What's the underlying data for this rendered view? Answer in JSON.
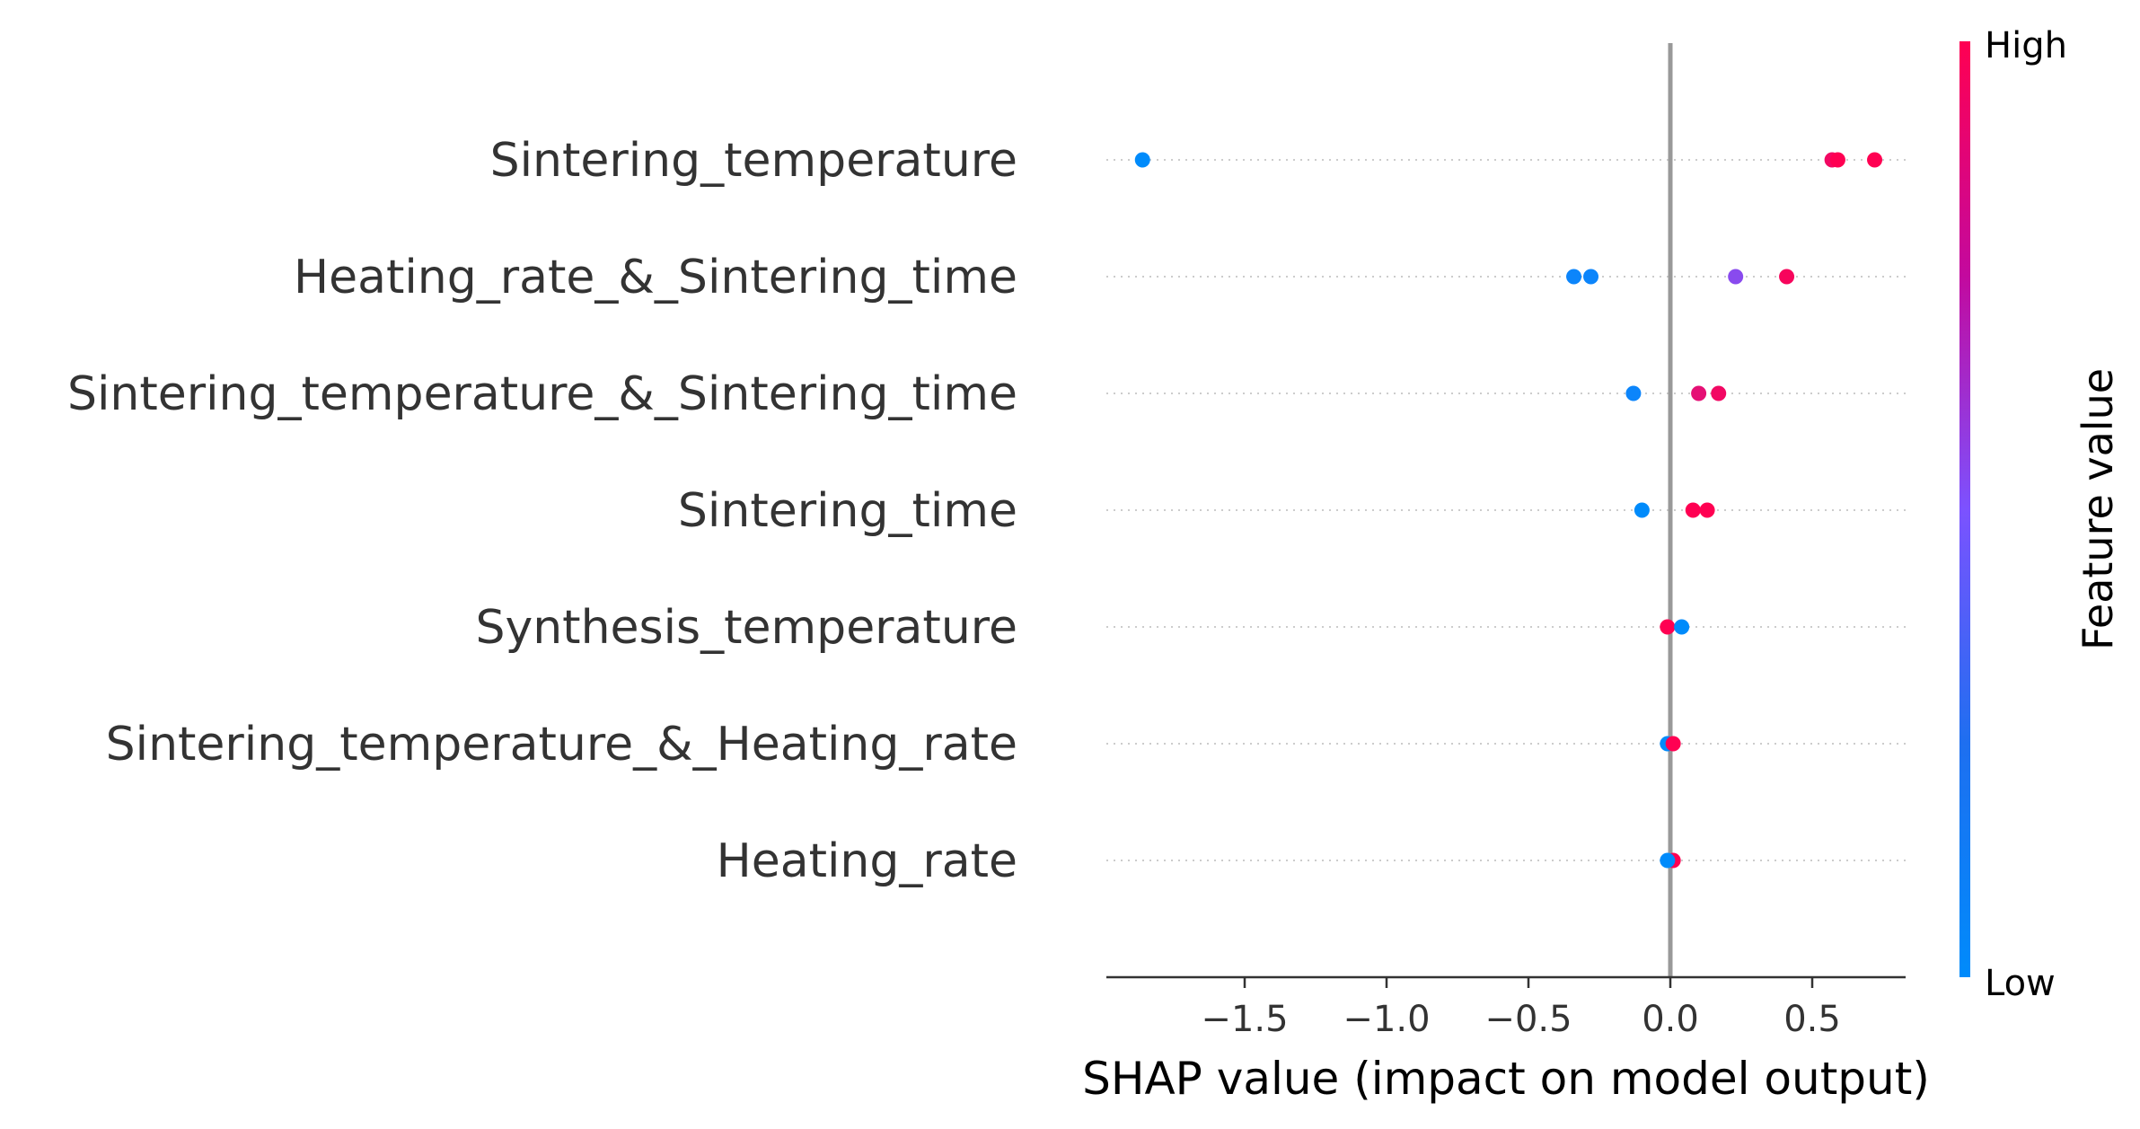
{
  "chart_data": {
    "type": "scatter",
    "subtype": "shap-beeswarm",
    "xlabel": "SHAP value (impact on model output)",
    "xlim": [
      -1.95,
      0.85
    ],
    "xticks": [
      -1.5,
      -1.0,
      -0.5,
      0.0,
      0.5
    ],
    "xtick_labels": [
      "−1.5",
      "−1.0",
      "−0.5",
      "0.0",
      "0.5"
    ],
    "colorbar": {
      "label": "Feature value",
      "high_label": "High",
      "low_label": "Low",
      "low_color": "#008bfb",
      "mid_color": "#7c52ff",
      "high_color": "#ff0052"
    },
    "zero_line_color": "#999999",
    "gridlines": "dotted horizontal per feature",
    "features": [
      {
        "name": "Sintering_temperature",
        "points": [
          {
            "x": -1.86,
            "v": 0.0
          },
          {
            "x": 0.57,
            "v": 0.95
          },
          {
            "x": 0.59,
            "v": 1.0
          },
          {
            "x": 0.72,
            "v": 1.0
          }
        ]
      },
      {
        "name": "Heating_rate_&_Sintering_time",
        "points": [
          {
            "x": -0.34,
            "v": 0.05
          },
          {
            "x": -0.28,
            "v": 0.05
          },
          {
            "x": 0.23,
            "v": 0.55
          },
          {
            "x": 0.41,
            "v": 0.97
          }
        ]
      },
      {
        "name": "Sintering_temperature_&_Sintering_time",
        "points": [
          {
            "x": -0.13,
            "v": 0.05
          },
          {
            "x": 0.1,
            "v": 0.9
          },
          {
            "x": 0.17,
            "v": 0.95
          }
        ]
      },
      {
        "name": "Sintering_time",
        "points": [
          {
            "x": -0.1,
            "v": 0.0
          },
          {
            "x": 0.08,
            "v": 1.0
          },
          {
            "x": 0.13,
            "v": 1.0
          }
        ]
      },
      {
        "name": "Synthesis_temperature",
        "points": [
          {
            "x": -0.01,
            "v": 1.0
          },
          {
            "x": 0.04,
            "v": 0.0
          }
        ]
      },
      {
        "name": "Sintering_temperature_&_Heating_rate",
        "points": [
          {
            "x": -0.01,
            "v": 0.0
          },
          {
            "x": 0.01,
            "v": 1.0
          }
        ]
      },
      {
        "name": "Heating_rate",
        "points": [
          {
            "x": 0.01,
            "v": 1.0
          },
          {
            "x": -0.01,
            "v": 0.0
          }
        ]
      }
    ]
  }
}
